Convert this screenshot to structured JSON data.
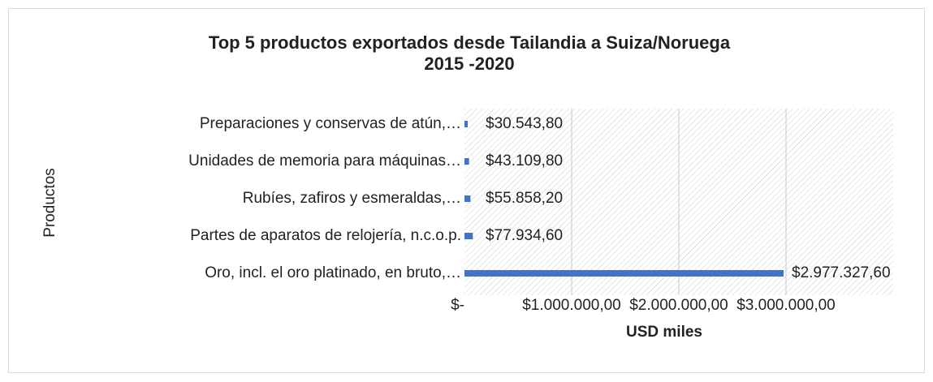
{
  "chart_data": {
    "type": "hbar",
    "title": [
      "Top 5 productos exportados desde Tailandia a Suiza/Noruega",
      "2015 -2020"
    ],
    "xlabel": "USD miles",
    "ylabel": "Productos",
    "categories": [
      "Preparaciones y conservas de atún,…",
      "Unidades de memoria para máquinas…",
      "Rubíes, zafiros y esmeraldas,…",
      "Partes de aparatos de relojería, n.c.o.p.",
      "Oro, incl. el oro platinado, en bruto,…"
    ],
    "values": [
      30543.8,
      43109.8,
      55858.2,
      77934.6,
      2977327.6
    ],
    "value_labels": [
      "$30.543,80",
      "$43.109,80",
      "$55.858,20",
      "$77.934,60",
      "$2.977.327,60"
    ],
    "color": "#4472c4",
    "xlim": [
      0,
      4000000
    ],
    "xticks": [
      {
        "value": 0,
        "label": "$-"
      },
      {
        "value": 1000000,
        "label": "$1.000.000,00"
      },
      {
        "value": 2000000,
        "label": "$2.000.000,00"
      },
      {
        "value": 3000000,
        "label": "$3.000.000,00"
      }
    ],
    "grid": true
  }
}
